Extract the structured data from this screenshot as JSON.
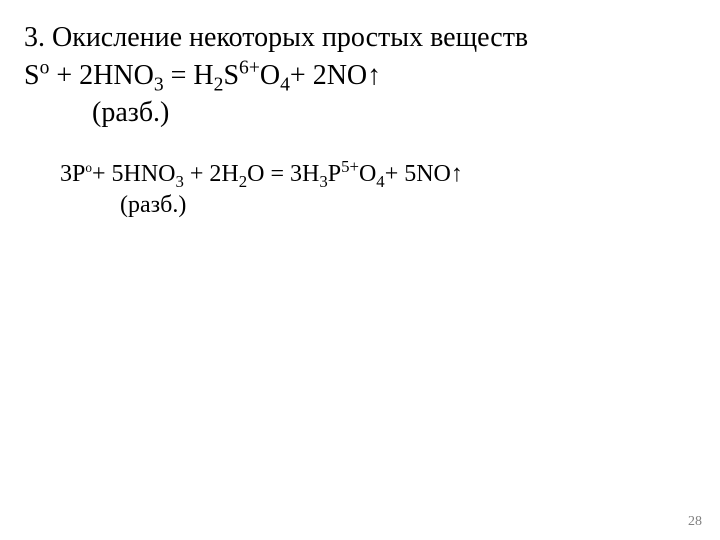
{
  "title": "3. Окисление некоторых простых веществ",
  "equation1": {
    "html": true,
    "template": "eq1"
  },
  "note1": "(разб.)",
  "equation2": {
    "html": true,
    "template": "eq2"
  },
  "note2": "(разб.)",
  "pageNumber": "28",
  "formulas": {
    "eq1_part1": "S",
    "eq1_sup1": "о",
    "eq1_part2": " + 2HNO",
    "eq1_sub1": "3",
    "eq1_part3": " = H",
    "eq1_sub2": "2",
    "eq1_part4": "S",
    "eq1_sup2": "6+",
    "eq1_part5": "O",
    "eq1_sub3": "4",
    "eq1_part6": "+ 2NO↑",
    "eq2_part1": "3P",
    "eq2_sup1": "о",
    "eq2_part2": "+ 5HNO",
    "eq2_sub1": "3",
    "eq2_part3": " + 2H",
    "eq2_sub2": "2",
    "eq2_part4": "O = 3H",
    "eq2_sub3": "3",
    "eq2_part5": "P",
    "eq2_sup2": "5+",
    "eq2_part6": "O",
    "eq2_sub4": "4",
    "eq2_part7": "+ 5NO↑"
  },
  "styling": {
    "background_color": "#ffffff",
    "text_color": "#000000",
    "font_family": "Times New Roman",
    "title_fontsize": 28,
    "equation1_fontsize": 28,
    "equation2_fontsize": 24,
    "page_number_fontsize": 14,
    "page_number_color": "#808080"
  }
}
